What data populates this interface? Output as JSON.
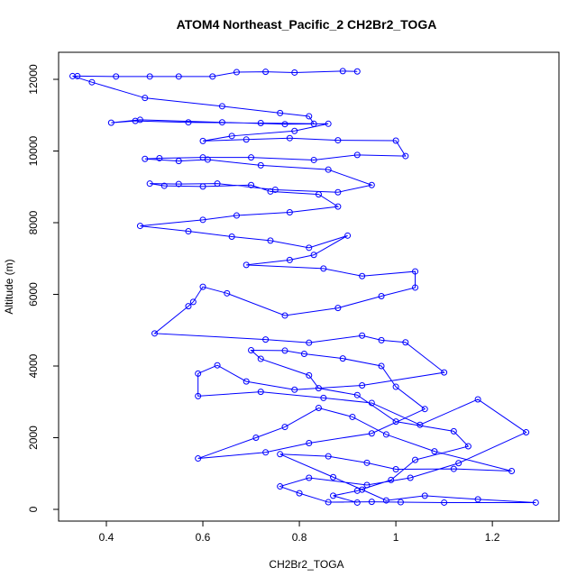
{
  "chart_data": {
    "type": "line",
    "title": "ATOM4 Northeast_Pacific_2 CH2Br2_TOGA",
    "x_label": "CH2Br2_TOGA",
    "y_label": "Altitude (m)",
    "color": "#0000ff",
    "marker": "open-circle",
    "xlim": [
      0.301,
      1.338
    ],
    "ylim": [
      -327,
      12755
    ],
    "xticks": [
      0.4,
      0.6,
      0.8,
      1.0,
      1.2
    ],
    "yticks": [
      0,
      2000,
      4000,
      6000,
      8000,
      10000,
      12000
    ],
    "x": [
      0.92,
      0.89,
      0.79,
      0.73,
      0.67,
      0.62,
      0.55,
      0.49,
      0.42,
      0.34,
      0.33,
      0.37,
      0.48,
      0.64,
      0.76,
      0.82,
      0.83,
      0.72,
      0.57,
      0.46,
      0.41,
      0.47,
      0.64,
      0.77,
      0.86,
      0.79,
      0.66,
      0.6,
      0.69,
      0.78,
      0.88,
      1.0,
      1.02,
      0.92,
      0.83,
      0.7,
      0.6,
      0.51,
      0.48,
      0.55,
      0.61,
      0.72,
      0.86,
      0.95,
      0.88,
      0.75,
      0.63,
      0.55,
      0.49,
      0.52,
      0.6,
      0.7,
      0.74,
      0.84,
      0.88,
      0.78,
      0.67,
      0.6,
      0.47,
      0.57,
      0.66,
      0.74,
      0.82,
      0.9,
      0.83,
      0.78,
      0.69,
      0.85,
      0.93,
      1.04,
      1.04,
      0.97,
      0.88,
      0.77,
      0.65,
      0.6,
      0.58,
      0.57,
      0.5,
      0.73,
      0.82,
      0.93,
      0.97,
      1.02,
      1.1,
      0.93,
      0.79,
      0.69,
      0.63,
      0.59,
      0.59,
      0.72,
      0.85,
      0.95,
      1.05,
      1.17,
      1.27,
      1.13,
      1.03,
      0.94,
      0.82,
      0.76,
      0.8,
      0.86,
      0.95,
      1.01,
      1.1,
      1.29,
      1.17,
      1.06,
      0.98,
      0.93,
      0.87,
      0.76,
      0.86,
      0.94,
      1.0,
      1.12,
      1.24,
      1.08,
      0.98,
      0.91,
      0.84,
      0.77,
      0.71,
      0.59,
      0.73,
      0.82,
      0.95,
      1.06,
      1.0,
      0.97,
      0.89,
      0.81,
      0.77,
      0.7,
      0.72,
      0.82,
      0.84,
      0.92,
      1.0,
      1.12,
      1.15,
      1.04,
      0.99,
      0.92,
      0.87,
      0.92
    ],
    "values": [
      12220,
      12230,
      12190,
      12210,
      12200,
      12080,
      12080,
      12080,
      12080,
      12090,
      12090,
      11920,
      11480,
      11250,
      11060,
      10970,
      10760,
      10780,
      10800,
      10840,
      10790,
      10870,
      10800,
      10750,
      10760,
      10560,
      10420,
      10280,
      10320,
      10360,
      10300,
      10290,
      9860,
      9890,
      9750,
      9820,
      9820,
      9800,
      9780,
      9720,
      9760,
      9600,
      9480,
      9050,
      8850,
      8920,
      9090,
      9080,
      9090,
      9030,
      9010,
      9050,
      8870,
      8790,
      8450,
      8290,
      8200,
      8080,
      7910,
      7760,
      7610,
      7500,
      7300,
      7640,
      7100,
      6960,
      6820,
      6720,
      6510,
      6640,
      6190,
      5950,
      5620,
      5410,
      6030,
      6210,
      5790,
      5670,
      4910,
      4740,
      4650,
      4850,
      4720,
      4660,
      3820,
      3460,
      3340,
      3570,
      4020,
      3790,
      3160,
      3280,
      3110,
      2970,
      2360,
      3070,
      2150,
      1290,
      880,
      680,
      880,
      640,
      450,
      200,
      210,
      200,
      190,
      190,
      280,
      380,
      250,
      550,
      900,
      1540,
      1480,
      1300,
      1120,
      1130,
      1070,
      1620,
      2090,
      2580,
      2830,
      2300,
      2000,
      1420,
      1590,
      1850,
      2120,
      2800,
      3420,
      4000,
      4210,
      4340,
      4430,
      4440,
      4200,
      3740,
      3380,
      3190,
      2450,
      2180,
      1760,
      1380,
      820,
      520,
      380,
      190
    ]
  }
}
